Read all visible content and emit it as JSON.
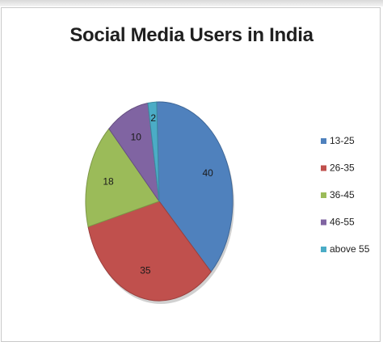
{
  "chart_data": {
    "type": "pie",
    "title": "Social Media Users in India",
    "categories": [
      "13-25",
      "26-35",
      "36-45",
      "46-55",
      "above 55"
    ],
    "values": [
      40,
      35,
      18,
      10,
      2
    ],
    "colors": [
      "#4f81bd",
      "#c0504d",
      "#9bbb59",
      "#8064a2",
      "#4bacc6"
    ],
    "legend_position": "right"
  }
}
